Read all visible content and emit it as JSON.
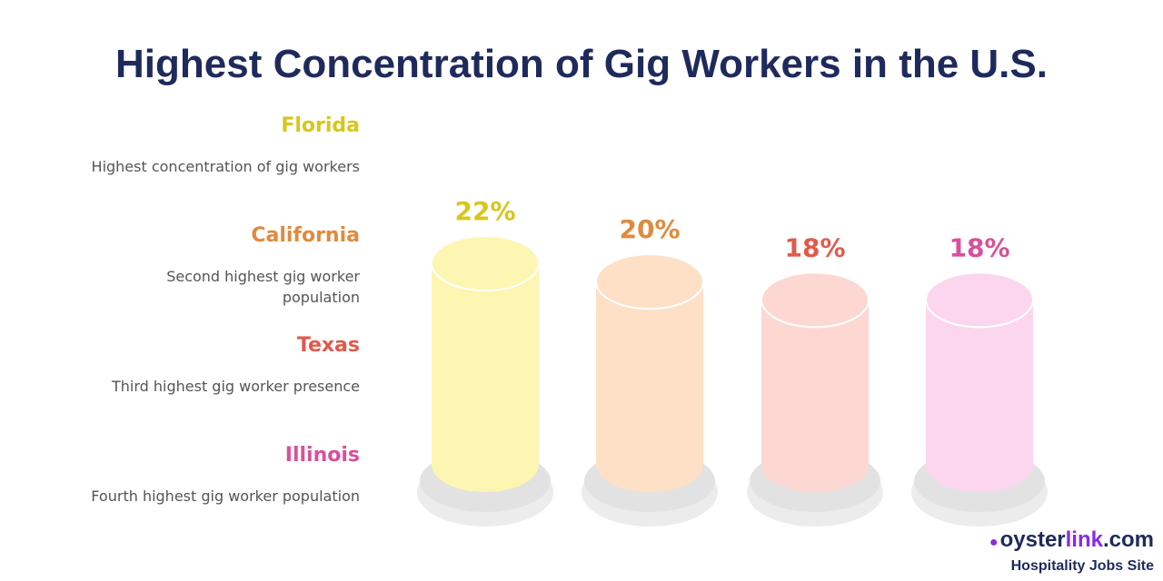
{
  "chart_data": {
    "type": "bar",
    "title": "Highest Concentration of Gig Workers in the U.S.",
    "categories": [
      "Florida",
      "California",
      "Texas",
      "Illinois"
    ],
    "values": [
      22,
      20,
      18,
      18
    ],
    "value_labels": [
      "22%",
      "20%",
      "18%",
      "18%"
    ],
    "descriptions": [
      "Highest concentration of gig workers",
      "Second highest gig worker population",
      "Third highest gig worker presence",
      "Fourth highest gig worker population"
    ],
    "label_colors": [
      "#d8c61a",
      "#e08a3c",
      "#e05a4c",
      "#d9509a"
    ],
    "bar_colors": [
      "#fdf6b2",
      "#fde0c6",
      "#fdd8d2",
      "#fcd6ee"
    ],
    "legend_position": "left",
    "grid": false
  },
  "brand": {
    "logo_dark": "oyster",
    "logo_accent": "link",
    "logo_suffix": ".com",
    "subtitle": "Hospitality Jobs Site"
  }
}
